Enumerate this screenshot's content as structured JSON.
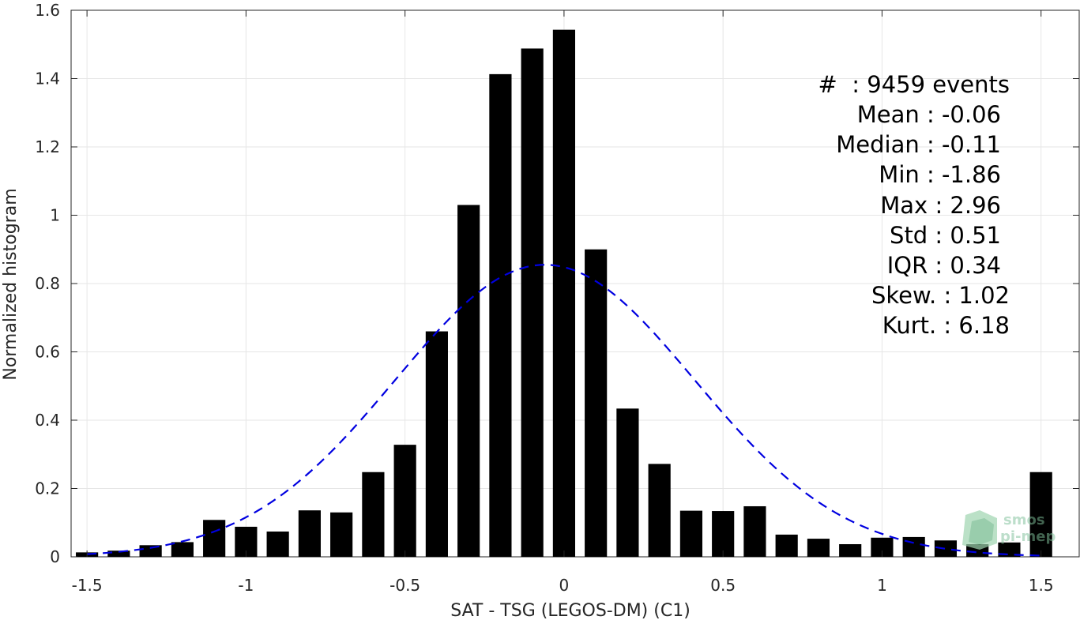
{
  "chart_data": {
    "type": "bar",
    "xlabel": "SAT - TSG (LEGOS-DM) (C1)",
    "ylabel": "Normalized histogram",
    "xlim": [
      -1.55,
      1.62
    ],
    "ylim": [
      0,
      1.6
    ],
    "xticks": [
      -1.5,
      -1,
      -0.5,
      0,
      0.5,
      1,
      1.5
    ],
    "xtick_labels": [
      "-1.5",
      "-1",
      "-0.5",
      "0",
      "0.5",
      "1",
      "1.5"
    ],
    "yticks": [
      0,
      0.2,
      0.4,
      0.6,
      0.8,
      1,
      1.2,
      1.4,
      1.6
    ],
    "ytick_labels": [
      "0",
      "0.2",
      "0.4",
      "0.6",
      "0.8",
      "1",
      "1.2",
      "1.4",
      "1.6"
    ],
    "grid": true,
    "bar_width": 0.07,
    "bar_color": "#000000",
    "x": [
      -1.5,
      -1.4,
      -1.3,
      -1.2,
      -1.1,
      -1.0,
      -0.9,
      -0.8,
      -0.7,
      -0.6,
      -0.5,
      -0.4,
      -0.3,
      -0.2,
      -0.1,
      0.0,
      0.1,
      0.2,
      0.3,
      0.4,
      0.5,
      0.6,
      0.7,
      0.8,
      0.9,
      1.0,
      1.1,
      1.2,
      1.3,
      1.4,
      1.5
    ],
    "values": [
      0.013,
      0.018,
      0.034,
      0.043,
      0.108,
      0.088,
      0.074,
      0.136,
      0.13,
      0.248,
      0.328,
      0.66,
      1.03,
      1.413,
      1.488,
      1.543,
      0.9,
      0.434,
      0.272,
      0.135,
      0.134,
      0.148,
      0.065,
      0.053,
      0.037,
      0.056,
      0.058,
      0.048,
      0.037,
      0.042,
      0.248
    ],
    "fit": {
      "type": "normal",
      "mean": -0.06,
      "std": 0.47,
      "peak": 0.855,
      "color": "#0000e0",
      "style": "dashed"
    },
    "annotations": [
      "#  : 9459 events",
      "Mean : -0.06",
      "Median : -0.11",
      "Min : -1.86",
      "Max : 2.96",
      "Std : 0.51",
      "IQR : 0.34",
      "Skew. : 1.02",
      "Kurt. : 6.18"
    ]
  },
  "logo": {
    "line1": "smos",
    "line2": "pi-mep"
  }
}
